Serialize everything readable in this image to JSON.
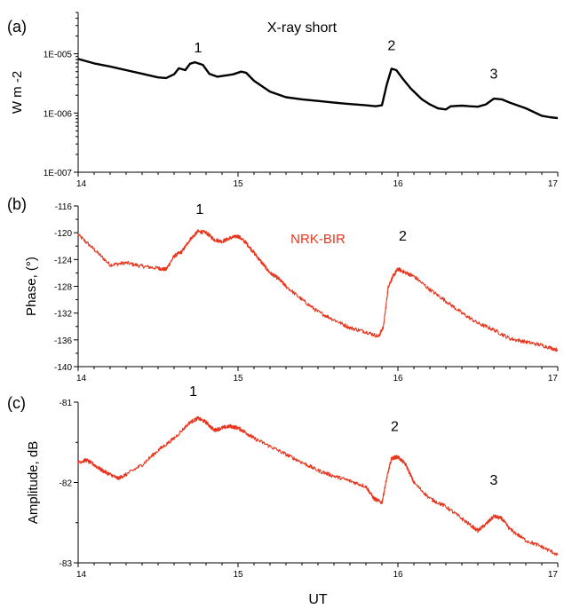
{
  "colors": {
    "xray": "#000000",
    "vlf": "#e8341c"
  },
  "chart_data": [
    {
      "type": "line",
      "panel_label": "(a)",
      "title": "X-ray short",
      "xlabel": "",
      "ylabel": "W m -2",
      "xlim": [
        14,
        17
      ],
      "ylim": [
        1e-07,
        5e-05
      ],
      "yscale": "log",
      "x_ticks": [
        "14",
        "15",
        "16",
        "17"
      ],
      "y_ticks": [
        {
          "value": 1e-07,
          "label": "1E-007"
        },
        {
          "value": 1e-06,
          "label": "1E-006"
        },
        {
          "value": 1e-05,
          "label": "1E-005"
        }
      ],
      "grid": false,
      "annotations": [
        {
          "text": "1",
          "x": 14.75,
          "y": 1.05e-05
        },
        {
          "text": "2",
          "x": 15.96,
          "y": 1.15e-05
        },
        {
          "text": "3",
          "x": 16.6,
          "y": 3.8e-06
        }
      ],
      "series": [
        {
          "color": "#000000",
          "x": [
            14.0,
            14.1,
            14.2,
            14.3,
            14.4,
            14.5,
            14.55,
            14.6,
            14.63,
            14.67,
            14.7,
            14.73,
            14.78,
            14.82,
            14.87,
            14.92,
            14.97,
            15.02,
            15.05,
            15.1,
            15.2,
            15.3,
            15.4,
            15.5,
            15.6,
            15.7,
            15.8,
            15.86,
            15.9,
            15.93,
            15.96,
            15.99,
            16.03,
            16.08,
            16.15,
            16.2,
            16.25,
            16.3,
            16.33,
            16.4,
            16.45,
            16.5,
            16.55,
            16.6,
            16.65,
            16.7,
            16.8,
            16.9,
            16.95,
            17.0
          ],
          "y": [
            8.2e-06,
            6.9e-06,
            6.1e-06,
            5.3e-06,
            4.6e-06,
            4e-06,
            3.9e-06,
            4.5e-06,
            5.7e-06,
            5.3e-06,
            6.8e-06,
            7.2e-06,
            6.5e-06,
            4.6e-06,
            4.1e-06,
            4.3e-06,
            4.5e-06,
            5e-06,
            4.8e-06,
            3.5e-06,
            2.3e-06,
            1.85e-06,
            1.7e-06,
            1.6e-06,
            1.5e-06,
            1.42e-06,
            1.35e-06,
            1.3e-06,
            1.35e-06,
            3e-06,
            5.6e-06,
            5.3e-06,
            3.8e-06,
            2.6e-06,
            1.7e-06,
            1.4e-06,
            1.2e-06,
            1.15e-06,
            1.3e-06,
            1.33e-06,
            1.3e-06,
            1.28e-06,
            1.4e-06,
            1.75e-06,
            1.7e-06,
            1.5e-06,
            1.2e-06,
            9e-07,
            8.5e-07,
            8.2e-07
          ]
        }
      ]
    },
    {
      "type": "line",
      "panel_label": "(b)",
      "title": "",
      "xlabel": "",
      "ylabel": "Phase, (°)",
      "xlim": [
        14,
        17
      ],
      "ylim": [
        -140,
        -116
      ],
      "x_ticks": [
        "14",
        "15",
        "16",
        "17"
      ],
      "y_ticks": [
        -116,
        -120,
        -124,
        -128,
        -132,
        -136,
        -140
      ],
      "grid": false,
      "annotations": [
        {
          "text": "1",
          "x": 14.76,
          "y": -117.2
        },
        {
          "text": "2",
          "x": 16.03,
          "y": -121.2
        }
      ],
      "series": [
        {
          "name": "NRK-BIR",
          "color": "#e8341c",
          "x": [
            14.0,
            14.1,
            14.2,
            14.3,
            14.4,
            14.5,
            14.55,
            14.6,
            14.65,
            14.7,
            14.75,
            14.8,
            14.85,
            14.9,
            14.95,
            15.0,
            15.05,
            15.1,
            15.15,
            15.2,
            15.25,
            15.3,
            15.4,
            15.5,
            15.6,
            15.7,
            15.8,
            15.88,
            15.91,
            15.94,
            15.97,
            16.0,
            16.05,
            16.1,
            16.2,
            16.3,
            16.4,
            16.5,
            16.6,
            16.7,
            16.8,
            16.9,
            17.0
          ],
          "y": [
            -120.3,
            -122.5,
            -124.8,
            -124.5,
            -125.0,
            -125.3,
            -125.5,
            -123.5,
            -122.8,
            -121.0,
            -119.8,
            -120.0,
            -121.0,
            -121.3,
            -120.8,
            -120.5,
            -121.5,
            -123.0,
            -124.5,
            -126.0,
            -126.8,
            -128.0,
            -130.0,
            -131.8,
            -133.0,
            -134.2,
            -134.8,
            -135.5,
            -134.0,
            -128.0,
            -126.5,
            -125.4,
            -126.0,
            -126.5,
            -128.5,
            -130.2,
            -132.0,
            -133.5,
            -134.5,
            -135.8,
            -136.3,
            -136.8,
            -137.5
          ]
        }
      ]
    },
    {
      "type": "line",
      "panel_label": "(c)",
      "title": "",
      "xlabel": "UT",
      "ylabel": "Amplitude, dB",
      "xlim": [
        14,
        17
      ],
      "ylim": [
        -83,
        -81
      ],
      "x_ticks": [
        "14",
        "15",
        "16",
        "17"
      ],
      "y_ticks": [
        -81,
        -82,
        -83
      ],
      "grid": false,
      "annotations": [
        {
          "text": "1",
          "x": 14.72,
          "y": -80.92
        },
        {
          "text": "2",
          "x": 15.98,
          "y": -81.36
        },
        {
          "text": "3",
          "x": 16.6,
          "y": -82.03
        }
      ],
      "series": [
        {
          "color": "#e8341c",
          "x": [
            14.0,
            14.05,
            14.1,
            14.15,
            14.2,
            14.25,
            14.3,
            14.4,
            14.5,
            14.6,
            14.7,
            14.75,
            14.8,
            14.85,
            14.9,
            14.95,
            15.0,
            15.05,
            15.1,
            15.2,
            15.3,
            15.4,
            15.5,
            15.6,
            15.7,
            15.8,
            15.85,
            15.9,
            15.93,
            15.96,
            16.0,
            16.05,
            16.1,
            16.2,
            16.3,
            16.4,
            16.5,
            16.55,
            16.6,
            16.65,
            16.7,
            16.8,
            16.9,
            17.0
          ],
          "y": [
            -81.75,
            -81.72,
            -81.78,
            -81.85,
            -81.9,
            -81.95,
            -81.9,
            -81.78,
            -81.6,
            -81.45,
            -81.25,
            -81.2,
            -81.25,
            -81.35,
            -81.32,
            -81.3,
            -81.32,
            -81.38,
            -81.45,
            -81.55,
            -81.65,
            -81.75,
            -81.85,
            -81.92,
            -81.98,
            -82.05,
            -82.2,
            -82.25,
            -81.95,
            -81.7,
            -81.68,
            -81.78,
            -82.0,
            -82.2,
            -82.3,
            -82.45,
            -82.6,
            -82.52,
            -82.42,
            -82.45,
            -82.58,
            -82.72,
            -82.8,
            -82.9
          ]
        }
      ]
    }
  ]
}
